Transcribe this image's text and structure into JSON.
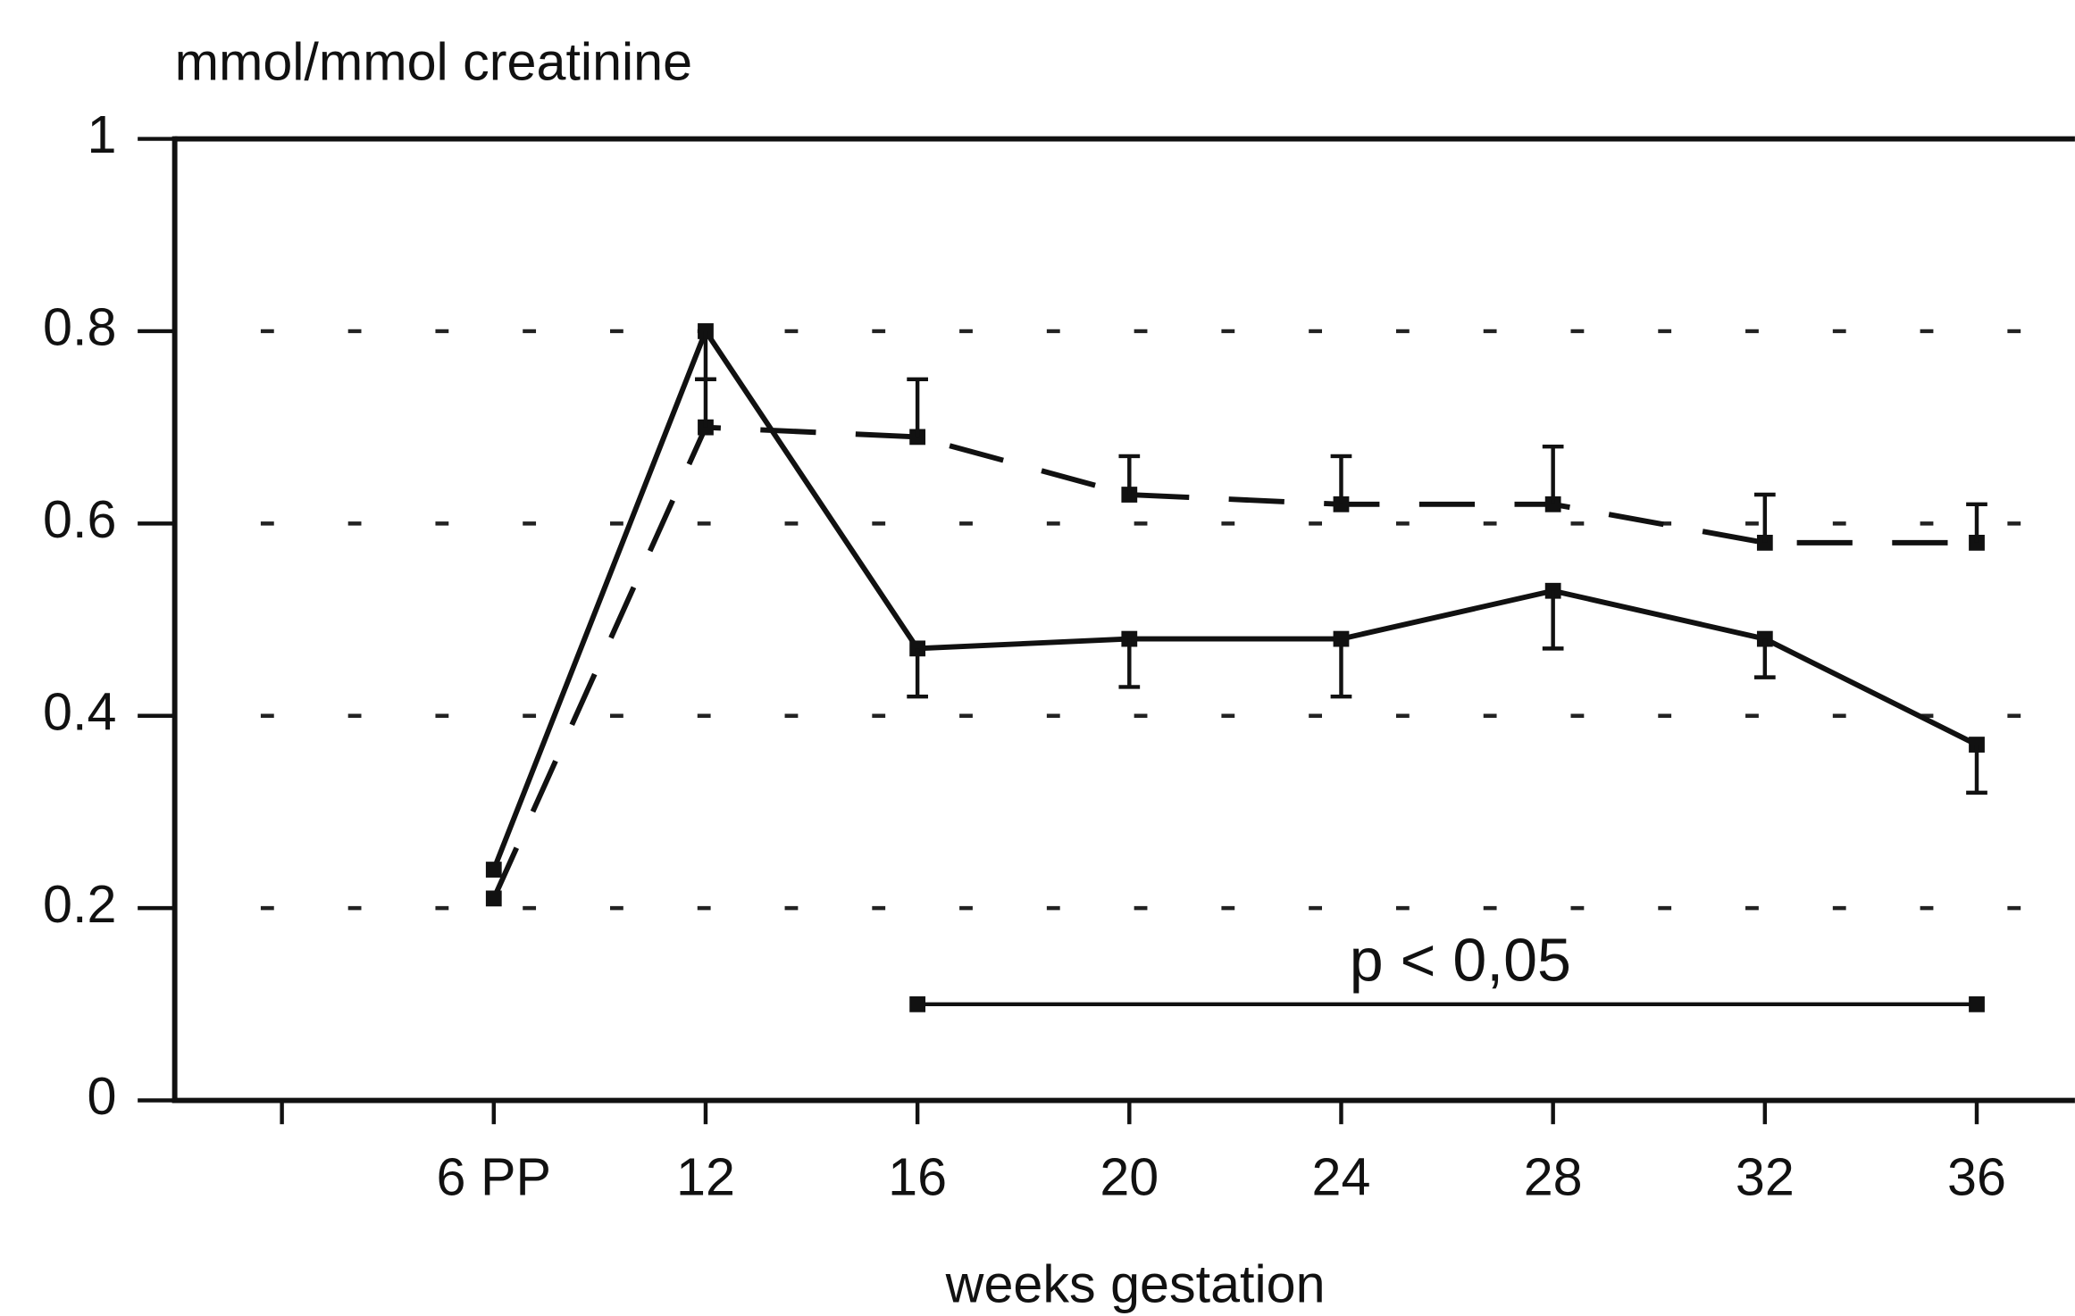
{
  "chart_data": {
    "type": "line",
    "y_axis_label": "mmol/mmol creatinine",
    "x_axis_label": "weeks gestation",
    "categories": [
      null,
      "6 PP",
      "12",
      "16",
      "20",
      "24",
      "28",
      "32",
      "36"
    ],
    "series": [
      {
        "color": "#111111",
        "dash": "solid",
        "error_direction": "down",
        "values": [
          null,
          0.24,
          0.8,
          0.47,
          0.48,
          0.48,
          0.53,
          0.48,
          0.37
        ],
        "errors": [
          null,
          null,
          0.05,
          0.05,
          0.05,
          0.06,
          0.06,
          0.04,
          0.05
        ]
      },
      {
        "color": "#111111",
        "dash": "dashed",
        "error_direction": "up",
        "values": [
          null,
          0.21,
          0.7,
          0.69,
          0.63,
          0.62,
          0.62,
          0.58,
          0.58
        ],
        "errors": [
          null,
          null,
          0.05,
          0.06,
          0.04,
          0.05,
          0.06,
          0.05,
          0.04
        ]
      }
    ],
    "ylim": [
      0,
      1
    ],
    "yticks": [
      0,
      0.2,
      0.4,
      0.6,
      0.8,
      1
    ],
    "grid": true,
    "annotation": {
      "text": "p < 0,05",
      "y": 0.1,
      "from": "16",
      "to": "36"
    }
  }
}
